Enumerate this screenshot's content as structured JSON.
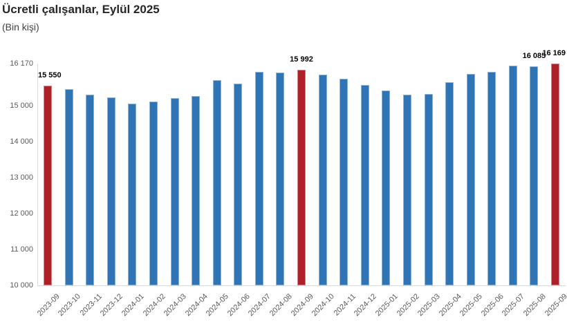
{
  "title": "Ücretli çalışanlar, Eylül 2025",
  "subtitle": "(Bin kişi)",
  "colors": {
    "bar_default": "#2F75B5",
    "bar_highlight": "#B02028",
    "axis_line": "#D9D9D9",
    "tick_label": "#595959",
    "data_label": "#000000",
    "title_color": "#262626"
  },
  "chart_data": {
    "type": "bar",
    "title": "Ücretli çalışanlar, Eylül 2025",
    "subtitle": "(Bin kişi)",
    "xlabel": "",
    "ylabel": "",
    "categories": [
      "2023-09",
      "2023-10",
      "2023-11",
      "2023-12",
      "2024-01",
      "2024-02",
      "2024-03",
      "2024-04",
      "2024-05",
      "2024-06",
      "2024-07",
      "2024-08",
      "2024-09",
      "2024-10",
      "2024-11",
      "2024-12",
      "2025-01",
      "2025-02",
      "2025-03",
      "2025-04",
      "2025-05",
      "2025-06",
      "2025-07",
      "2025-08",
      "2025-09"
    ],
    "values": [
      15550,
      15450,
      15310,
      15230,
      15050,
      15110,
      15210,
      15270,
      15710,
      15610,
      15930,
      15920,
      15992,
      15860,
      15740,
      15580,
      15420,
      15300,
      15315,
      15650,
      15880,
      15930,
      16120,
      16085,
      16169
    ],
    "highlighted_indices": [
      0,
      12,
      24
    ],
    "data_labels": {
      "0": "15 550",
      "12": "15 992",
      "23": "16 085",
      "24": "16 169"
    },
    "ylim": [
      10000,
      16170
    ],
    "yticks": [
      16170,
      15000,
      14000,
      13000,
      12000,
      11000,
      10000
    ],
    "ytick_labels": [
      "16 170",
      "15 000",
      "14 000",
      "13 000",
      "12 000",
      "11 000",
      "10 000"
    ],
    "grid": false,
    "legend": "none",
    "bar_colors_note": "blue bars default; September bars (2023-09, 2024-09, 2025-09) highlighted red"
  }
}
